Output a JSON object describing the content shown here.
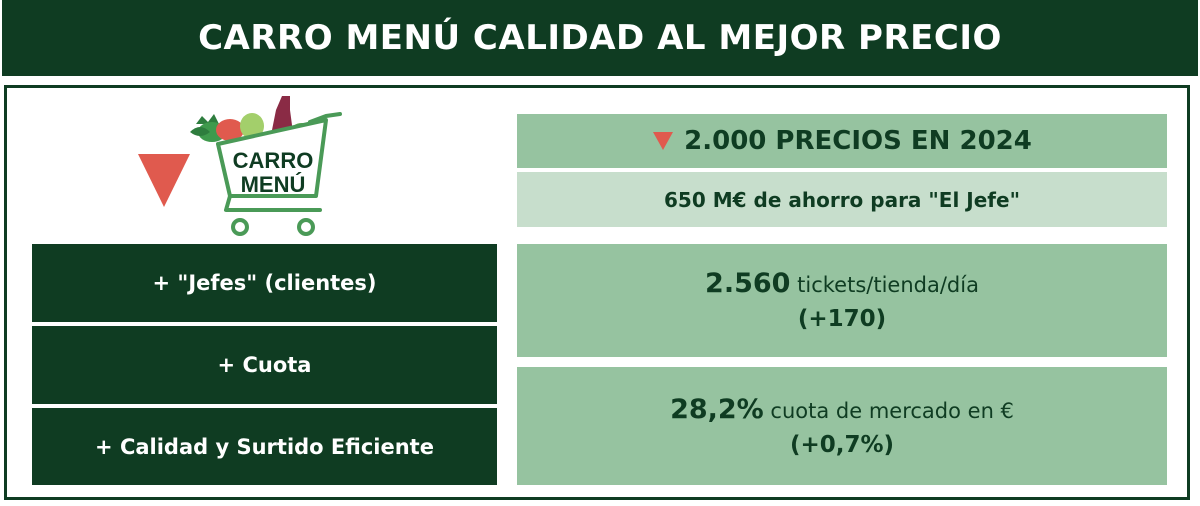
{
  "header": {
    "title": "CARRO MENÚ CALIDAD AL MEJOR PRECIO"
  },
  "logo": {
    "line1": "CARRO",
    "line2": "MENÚ",
    "down_arrow_icon": "down-triangle-icon",
    "cart_icon": "shopping-cart-icon"
  },
  "colors": {
    "dark_green": "#0f3c22",
    "mid_green": "#96c3a0",
    "light_green": "#c7decc",
    "red": "#e05a4e"
  },
  "prices": {
    "headline": "2.000 PRECIOS EN 2024",
    "savings": "650 M€ de ahorro para \"El Jefe\""
  },
  "left_items": [
    {
      "label": "+ \"Jefes\" (clientes)"
    },
    {
      "label": "+ Cuota"
    },
    {
      "label": "+ Calidad y Surtido Eficiente"
    }
  ],
  "stats": [
    {
      "value": "2.560",
      "desc": "tickets/tienda/día",
      "change": "(+170)"
    },
    {
      "value": "28,2%",
      "desc": "cuota de mercado en €",
      "change": "(+0,7%)"
    }
  ]
}
